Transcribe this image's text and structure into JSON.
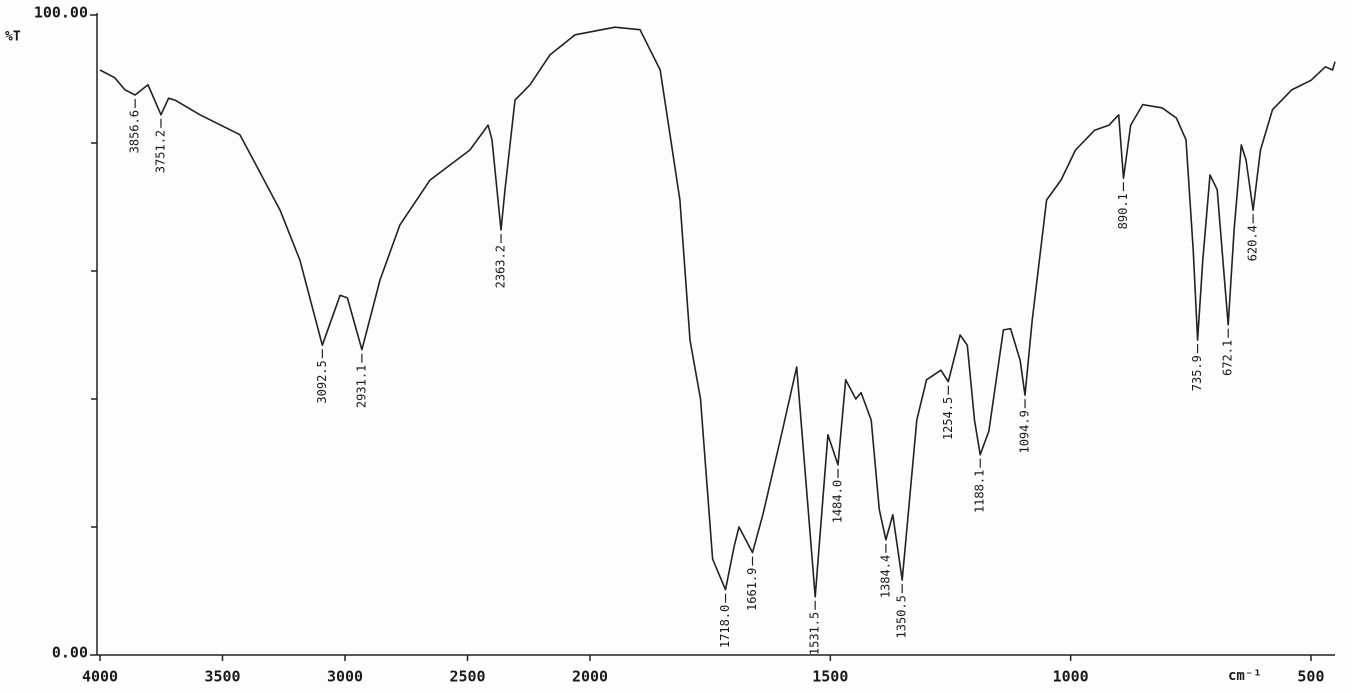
{
  "chart_data": {
    "type": "line",
    "y_label": "%T",
    "x_label": "cm⁻¹",
    "xlim": [
      4000,
      450
    ],
    "x_scale_break": 2000,
    "ylim": [
      0,
      100
    ],
    "xticks": [
      4000,
      3500,
      3000,
      2500,
      2000,
      1500,
      1000,
      500
    ],
    "yticks": [
      {
        "value": 0,
        "label": "0.00"
      },
      {
        "value": 100,
        "label": "100.00"
      }
    ],
    "yminor": [
      20,
      40,
      60,
      80
    ],
    "color": "#222222",
    "x": [
      4000,
      3940,
      3898,
      3856.6,
      3804,
      3751.2,
      3720,
      3694,
      3592,
      3429,
      3265,
      3184,
      3092.5,
      3020,
      2990,
      2931.1,
      2857,
      2776,
      2653,
      2490,
      2416,
      2400,
      2363.2,
      2347,
      2306,
      2245,
      2163,
      2061,
      1948,
      1896,
      1854,
      1813,
      1792,
      1770,
      1745,
      1718,
      1700,
      1690,
      1661.9,
      1640,
      1600,
      1570,
      1531.5,
      1505,
      1484,
      1468,
      1447,
      1436,
      1415,
      1398,
      1384.4,
      1370,
      1350.5,
      1320,
      1300,
      1270,
      1254.5,
      1230,
      1215,
      1200,
      1188.1,
      1170,
      1140,
      1125,
      1105,
      1094.9,
      1080,
      1050,
      1020,
      990,
      950,
      920,
      900,
      890.1,
      875,
      850,
      810,
      780,
      760,
      745,
      735.9,
      725,
      710,
      695,
      680,
      672.1,
      660,
      645,
      635,
      620.4,
      605,
      580,
      540,
      500,
      470,
      455,
      450
    ],
    "values": [
      91.4,
      90.2,
      88.3,
      87.5,
      89.1,
      84.4,
      87,
      86.7,
      84.4,
      81.3,
      69.5,
      61.7,
      48.4,
      56.2,
      55.8,
      47.7,
      58.6,
      67.2,
      74.2,
      78.9,
      82.8,
      80.5,
      66.4,
      72.7,
      86.7,
      89.1,
      93.8,
      96.9,
      98.1,
      97.7,
      91.4,
      71.1,
      49.2,
      40,
      15,
      10.2,
      17,
      20,
      16,
      22,
      35,
      45,
      9.1,
      34.4,
      29.7,
      43,
      40,
      41,
      36.7,
      22.7,
      18,
      21.9,
      11.7,
      36.7,
      43,
      44.5,
      42.7,
      50,
      48.4,
      36.7,
      31.3,
      35,
      50.8,
      51,
      46,
      40.6,
      52.3,
      71.1,
      74.2,
      78.9,
      82,
      82.8,
      84.4,
      74.5,
      82.8,
      86,
      85.5,
      83.9,
      80.5,
      63.3,
      49.2,
      61.7,
      75,
      72.7,
      58.6,
      51.6,
      66.4,
      79.7,
      77.3,
      69.5,
      78.9,
      85.2,
      88.3,
      89.8,
      91.9,
      91.4,
      92.7
    ],
    "annotations": [
      {
        "x": 3856.6,
        "label": "3856.6"
      },
      {
        "x": 3751.2,
        "label": "3751.2"
      },
      {
        "x": 3092.5,
        "label": "3092.5"
      },
      {
        "x": 2931.1,
        "label": "2931.1"
      },
      {
        "x": 2363.2,
        "label": "2363.2"
      },
      {
        "x": 1718,
        "label": "1718.0"
      },
      {
        "x": 1661.9,
        "label": "1661.9"
      },
      {
        "x": 1531.5,
        "label": "1531.5"
      },
      {
        "x": 1484,
        "label": "1484.0"
      },
      {
        "x": 1384.4,
        "label": "1384.4"
      },
      {
        "x": 1350.5,
        "label": "1350.5"
      },
      {
        "x": 1254.5,
        "label": "1254.5"
      },
      {
        "x": 1188.1,
        "label": "1188.1"
      },
      {
        "x": 1094.9,
        "label": "1094.9"
      },
      {
        "x": 890.1,
        "label": "890.1"
      },
      {
        "x": 735.9,
        "label": "735.9"
      },
      {
        "x": 672.1,
        "label": "672.1"
      },
      {
        "x": 620.4,
        "label": "620.4"
      }
    ]
  }
}
